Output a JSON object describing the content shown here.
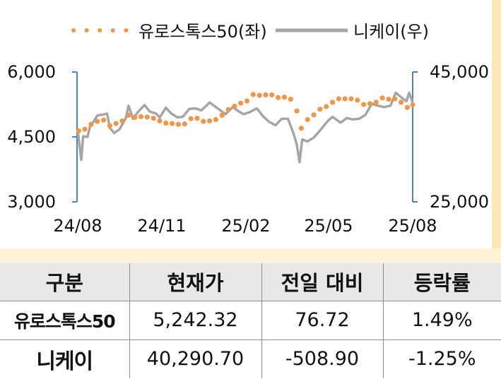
{
  "chart_data": {
    "type": "line",
    "title": "",
    "legend_position": "top",
    "x_ticks": [
      "24/08",
      "24/11",
      "25/02",
      "25/05",
      "25/08"
    ],
    "x_range": [
      "2024-08-01",
      "2025-08-12"
    ],
    "y_left": {
      "ticks": [
        "6,000",
        "4,500",
        "3,000"
      ],
      "range": [
        3000,
        6000
      ]
    },
    "y_right": {
      "ticks": [
        "45,000",
        "25,000"
      ],
      "range": [
        25000,
        45000
      ]
    },
    "grid": false,
    "series": [
      {
        "name": "유로스톡스50(좌)",
        "axis": "left",
        "color": "#f0964a",
        "style": "dotted",
        "points": [
          [
            "2024-08-02",
            4640
          ],
          [
            "2024-08-09",
            4680
          ],
          [
            "2024-08-16",
            4790
          ],
          [
            "2024-08-23",
            4860
          ],
          [
            "2024-08-30",
            4890
          ],
          [
            "2024-09-06",
            4760
          ],
          [
            "2024-09-13",
            4810
          ],
          [
            "2024-09-20",
            4870
          ],
          [
            "2024-09-27",
            5000
          ],
          [
            "2024-10-04",
            4950
          ],
          [
            "2024-10-11",
            4970
          ],
          [
            "2024-10-18",
            4960
          ],
          [
            "2024-10-25",
            4930
          ],
          [
            "2024-11-01",
            4870
          ],
          [
            "2024-11-08",
            4820
          ],
          [
            "2024-11-15",
            4810
          ],
          [
            "2024-11-22",
            4790
          ],
          [
            "2024-11-29",
            4800
          ],
          [
            "2024-12-06",
            4920
          ],
          [
            "2024-12-13",
            4930
          ],
          [
            "2024-12-20",
            4860
          ],
          [
            "2024-12-27",
            4870
          ],
          [
            "2025-01-03",
            4900
          ],
          [
            "2025-01-10",
            5000
          ],
          [
            "2025-01-17",
            5130
          ],
          [
            "2025-01-24",
            5210
          ],
          [
            "2025-01-31",
            5280
          ],
          [
            "2025-02-07",
            5330
          ],
          [
            "2025-02-14",
            5480
          ],
          [
            "2025-02-21",
            5460
          ],
          [
            "2025-02-28",
            5470
          ],
          [
            "2025-03-07",
            5470
          ],
          [
            "2025-03-14",
            5410
          ],
          [
            "2025-03-21",
            5420
          ],
          [
            "2025-03-28",
            5370
          ],
          [
            "2025-04-04",
            5100
          ],
          [
            "2025-04-09",
            4700
          ],
          [
            "2025-04-16",
            4900
          ],
          [
            "2025-04-23",
            5010
          ],
          [
            "2025-04-30",
            5140
          ],
          [
            "2025-05-07",
            5200
          ],
          [
            "2025-05-14",
            5300
          ],
          [
            "2025-05-21",
            5380
          ],
          [
            "2025-05-28",
            5380
          ],
          [
            "2025-06-04",
            5380
          ],
          [
            "2025-06-11",
            5350
          ],
          [
            "2025-06-18",
            5250
          ],
          [
            "2025-06-25",
            5270
          ],
          [
            "2025-07-02",
            5300
          ],
          [
            "2025-07-09",
            5400
          ],
          [
            "2025-07-16",
            5370
          ],
          [
            "2025-07-23",
            5380
          ],
          [
            "2025-07-30",
            5300
          ],
          [
            "2025-08-06",
            5180
          ],
          [
            "2025-08-12",
            5242
          ]
        ]
      },
      {
        "name": "니케이(우)",
        "axis": "right",
        "color": "#a6a6a6",
        "style": "solid",
        "points": [
          [
            "2024-08-01",
            36000
          ],
          [
            "2024-08-05",
            31460
          ],
          [
            "2024-08-07",
            35100
          ],
          [
            "2024-08-12",
            35000
          ],
          [
            "2024-08-15",
            36700
          ],
          [
            "2024-08-19",
            37400
          ],
          [
            "2024-08-23",
            38300
          ],
          [
            "2024-08-28",
            38400
          ],
          [
            "2024-09-03",
            38600
          ],
          [
            "2024-09-06",
            36400
          ],
          [
            "2024-09-11",
            35600
          ],
          [
            "2024-09-17",
            36200
          ],
          [
            "2024-09-24",
            37900
          ],
          [
            "2024-09-27",
            39800
          ],
          [
            "2024-10-02",
            37800
          ],
          [
            "2024-10-08",
            38900
          ],
          [
            "2024-10-15",
            39900
          ],
          [
            "2024-10-21",
            38900
          ],
          [
            "2024-10-28",
            38600
          ],
          [
            "2024-11-01",
            38000
          ],
          [
            "2024-11-08",
            39500
          ],
          [
            "2024-11-14",
            38600
          ],
          [
            "2024-11-21",
            38000
          ],
          [
            "2024-11-27",
            38100
          ],
          [
            "2024-12-04",
            39300
          ],
          [
            "2024-12-11",
            39400
          ],
          [
            "2024-12-18",
            39100
          ],
          [
            "2024-12-27",
            40300
          ],
          [
            "2025-01-06",
            39300
          ],
          [
            "2025-01-14",
            38500
          ],
          [
            "2025-01-22",
            39600
          ],
          [
            "2025-01-28",
            39000
          ],
          [
            "2025-02-03",
            38500
          ],
          [
            "2025-02-10",
            38800
          ],
          [
            "2025-02-18",
            39400
          ],
          [
            "2025-02-25",
            38200
          ],
          [
            "2025-03-04",
            37300
          ],
          [
            "2025-03-11",
            36800
          ],
          [
            "2025-03-18",
            37800
          ],
          [
            "2025-03-25",
            37800
          ],
          [
            "2025-03-31",
            35600
          ],
          [
            "2025-04-04",
            33800
          ],
          [
            "2025-04-07",
            31100
          ],
          [
            "2025-04-10",
            34600
          ],
          [
            "2025-04-16",
            34300
          ],
          [
            "2025-04-23",
            34900
          ],
          [
            "2025-04-30",
            36000
          ],
          [
            "2025-05-09",
            37500
          ],
          [
            "2025-05-14",
            38100
          ],
          [
            "2025-05-23",
            37200
          ],
          [
            "2025-05-30",
            37900
          ],
          [
            "2025-06-06",
            37700
          ],
          [
            "2025-06-13",
            37800
          ],
          [
            "2025-06-20",
            38400
          ],
          [
            "2025-06-27",
            40100
          ],
          [
            "2025-07-04",
            39800
          ],
          [
            "2025-07-11",
            39600
          ],
          [
            "2025-07-18",
            39800
          ],
          [
            "2025-07-24",
            41800
          ],
          [
            "2025-07-31",
            41000
          ],
          [
            "2025-08-05",
            40500
          ],
          [
            "2025-08-08",
            41800
          ],
          [
            "2025-08-12",
            40290
          ]
        ]
      }
    ]
  },
  "table": {
    "headers": [
      "구분",
      "현재가",
      "전일 대비",
      "등락률"
    ],
    "rows": [
      {
        "name": "유로스톡스50",
        "price": "5,242.32",
        "change": "76.72",
        "rate": "1.49%"
      },
      {
        "name": "니케이",
        "price": "40,290.70",
        "change": "-508.90",
        "rate": "-1.25%"
      }
    ]
  }
}
